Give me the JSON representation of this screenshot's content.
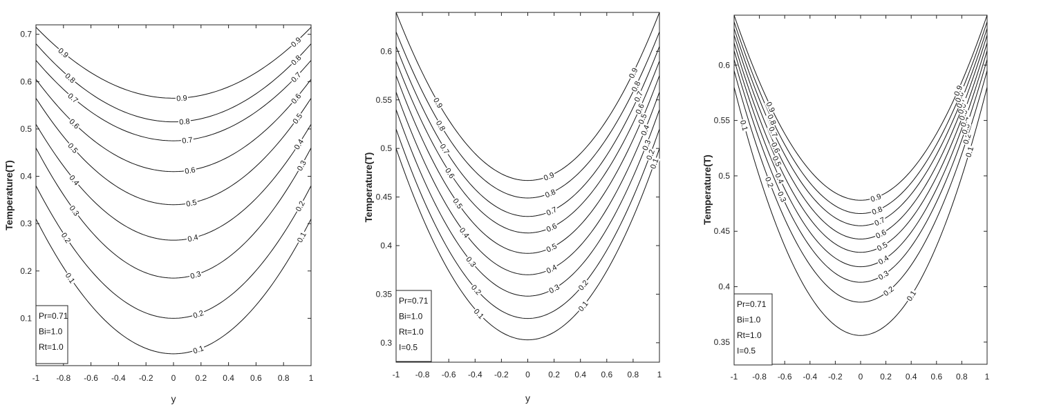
{
  "chart_data": [
    {
      "type": "line",
      "xlabel": "y",
      "ylabel": "Temperature(T)",
      "xlim": [
        -1,
        1
      ],
      "ylim": [
        0,
        0.72
      ],
      "xticks": [
        "-1",
        "-0.8",
        "-0.6",
        "-0.4",
        "-0.2",
        "0",
        "0.2",
        "0.4",
        "0.6",
        "0.8",
        "1"
      ],
      "yticks": [
        "0.1",
        "0.2",
        "0.3",
        "0.4",
        "0.5",
        "0.6",
        "0.7"
      ],
      "legend": [
        "Pr=0.71",
        "Bi=1.0",
        "Rt=1.0"
      ],
      "legend_position": "bottom-left",
      "series": [
        {
          "name": "0.1",
          "center": 0.025,
          "edge": 0.31
        },
        {
          "name": "0.2",
          "center": 0.1,
          "edge": 0.38
        },
        {
          "name": "0.3",
          "center": 0.185,
          "edge": 0.46
        },
        {
          "name": "0.4",
          "center": 0.265,
          "edge": 0.51
        },
        {
          "name": "0.5",
          "center": 0.34,
          "edge": 0.565
        },
        {
          "name": "0.6",
          "center": 0.41,
          "edge": 0.605
        },
        {
          "name": "0.7",
          "center": 0.475,
          "edge": 0.645
        },
        {
          "name": "0.8",
          "center": 0.515,
          "edge": 0.68
        },
        {
          "name": "0.9",
          "center": 0.565,
          "edge": 0.715
        }
      ]
    },
    {
      "type": "line",
      "xlabel": "y",
      "ylabel": "Temperature(T)",
      "xlim": [
        -1,
        1
      ],
      "ylim": [
        0.28,
        0.64
      ],
      "xticks": [
        "-1",
        "-0.8",
        "-0.6",
        "-0.4",
        "-0.2",
        "0",
        "0.2",
        "0.4",
        "0.6",
        "0.8",
        "1"
      ],
      "yticks": [
        "0.3",
        "0.35",
        "0.4",
        "0.45",
        "0.5",
        "0.55",
        "0.6"
      ],
      "legend": [
        "Pr=0.71",
        "Bi=1.0",
        "Rt=1.0",
        "I=0.5"
      ],
      "legend_position": "bottom-left",
      "series": [
        {
          "name": "0.1",
          "center": 0.303,
          "edge": 0.5
        },
        {
          "name": "0.2",
          "center": 0.325,
          "edge": 0.52
        },
        {
          "name": "0.3",
          "center": 0.348,
          "edge": 0.54
        },
        {
          "name": "0.4",
          "center": 0.37,
          "edge": 0.558
        },
        {
          "name": "0.5",
          "center": 0.392,
          "edge": 0.575
        },
        {
          "name": "0.6",
          "center": 0.413,
          "edge": 0.59
        },
        {
          "name": "0.7",
          "center": 0.43,
          "edge": 0.605
        },
        {
          "name": "0.8",
          "center": 0.449,
          "edge": 0.62
        },
        {
          "name": "0.9",
          "center": 0.467,
          "edge": 0.64
        }
      ]
    },
    {
      "type": "line",
      "xlabel": "",
      "ylabel": "Temperature(T)",
      "xlim": [
        -1,
        1
      ],
      "ylim": [
        0.33,
        0.645
      ],
      "xticks": [
        "-1",
        "-0.8",
        "-0.6",
        "-0.4",
        "-0.2",
        "0",
        "0.2",
        "0.4",
        "0.6",
        "0.8",
        "1"
      ],
      "yticks": [
        "0.35",
        "0.4",
        "0.45",
        "0.5",
        "0.55",
        "0.6"
      ],
      "legend": [
        "Pr=0.71",
        "Bi=1.0",
        "Rt=1.0",
        "I=0.5"
      ],
      "legend_position": "bottom-left",
      "series": [
        {
          "name": "0.1",
          "center": 0.356,
          "edge": 0.58
        },
        {
          "name": "0.2",
          "center": 0.386,
          "edge": 0.595
        },
        {
          "name": "0.3",
          "center": 0.404,
          "edge": 0.605
        },
        {
          "name": "0.4",
          "center": 0.418,
          "edge": 0.613
        },
        {
          "name": "0.5",
          "center": 0.431,
          "edge": 0.62
        },
        {
          "name": "0.6",
          "center": 0.443,
          "edge": 0.627
        },
        {
          "name": "0.7",
          "center": 0.455,
          "edge": 0.633
        },
        {
          "name": "0.8",
          "center": 0.466,
          "edge": 0.639
        },
        {
          "name": "0.9",
          "center": 0.478,
          "edge": 0.645
        }
      ]
    }
  ]
}
